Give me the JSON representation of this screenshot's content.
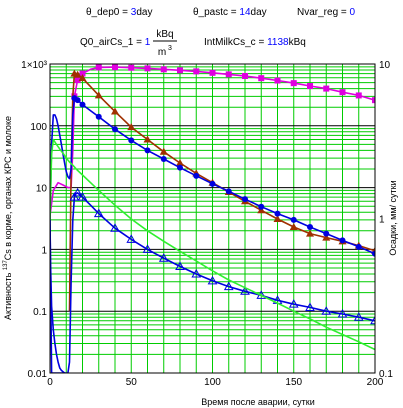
{
  "header": {
    "p1_name": "θ_dep0 = ",
    "p1_value": "3",
    "p1_unit": "day",
    "p2_name": "θ_pastc = ",
    "p2_value": "14",
    "p2_unit": "day",
    "p3_name": "Nvar_reg = ",
    "p3_value": "0",
    "p4_name": "Q0_airCs_1 = ",
    "p4_value": "1",
    "p4_unit_num": "kBq",
    "p4_unit_den": "m",
    "p4_unit_exp": "3",
    "p5_name": "IntMilkCs_c = ",
    "p5_value": "1138",
    "p5_unit": "kBq"
  },
  "chart_data": {
    "type": "line",
    "xlabel": "Время после аварии, сутки",
    "ylabel_left_sup": "137",
    "ylabel_left_main": "Cs в корме, органах КРС и молоке",
    "ylabel_left_pre": "Активность ",
    "ylabel_right": "Осадки, мм/ сутки",
    "xlim": [
      0,
      200
    ],
    "ylim_left": [
      0.01,
      1000
    ],
    "ylim_right": [
      0.1,
      10
    ],
    "log_y": true,
    "grid": true,
    "x_ticks": [
      "0",
      "50",
      "100",
      "150",
      "200"
    ],
    "y_ticks_left": [
      "0.01",
      "0.1",
      "1",
      "10",
      "100",
      "1×10³"
    ],
    "y_ticks_right": [
      "0.1",
      "1",
      "10"
    ],
    "colors": {
      "grid": "#00cc00",
      "magenta": "#e000e0",
      "brown": "#a03000",
      "blue": "#0000e0",
      "green": "#30f030",
      "pink": "#ff60a0"
    },
    "series": [
      {
        "color": "magenta",
        "marker": "square",
        "x": [
          0,
          2,
          5,
          8,
          11,
          13,
          14,
          15,
          17,
          20,
          25,
          30,
          40,
          50,
          60,
          70,
          80,
          90,
          100,
          110,
          120,
          130,
          140,
          150,
          160,
          170,
          180,
          190,
          200
        ],
        "y": [
          3.5,
          9,
          12,
          11,
          10,
          10,
          40,
          300,
          550,
          700,
          820,
          880,
          890,
          870,
          850,
          820,
          790,
          760,
          720,
          680,
          640,
          590,
          540,
          490,
          440,
          400,
          350,
          310,
          260
        ]
      },
      {
        "color": "brown",
        "marker": "triangle",
        "x": [
          12,
          13,
          14,
          15,
          17,
          20,
          25,
          30,
          40,
          50,
          60,
          70,
          80,
          90,
          100,
          110,
          120,
          130,
          140,
          150,
          160,
          170,
          180,
          190,
          200
        ],
        "y": [
          0.1,
          20,
          300,
          700,
          670,
          590,
          430,
          310,
          170,
          95,
          60,
          38,
          25,
          17,
          12,
          8.5,
          6,
          4.3,
          3.1,
          2.3,
          1.8,
          1.55,
          1.35,
          1.15,
          0.95
        ]
      },
      {
        "color": "blue",
        "marker": "dot",
        "x": [
          0,
          1,
          2,
          3,
          4,
          5,
          6,
          7,
          8,
          9,
          10,
          11,
          12,
          13,
          14,
          15,
          17,
          20,
          25,
          30,
          40,
          50,
          60,
          70,
          80,
          90,
          100,
          110,
          120,
          130,
          140,
          150,
          160,
          170,
          180,
          190,
          200
        ],
        "y": [
          3,
          50,
          150,
          150,
          130,
          100,
          70,
          50,
          35,
          25,
          18,
          15,
          14,
          20,
          150,
          280,
          260,
          220,
          175,
          140,
          88,
          58,
          40,
          29,
          21,
          15.5,
          11.5,
          8.7,
          6.5,
          4.9,
          3.8,
          3.0,
          2.3,
          1.8,
          1.4,
          1.1,
          0.85
        ]
      },
      {
        "color": "blue",
        "marker": "triangle-open",
        "x": [
          0,
          1,
          3,
          5,
          7,
          9,
          11,
          12,
          13,
          14,
          15,
          16,
          17,
          20,
          25,
          30,
          40,
          50,
          60,
          70,
          80,
          90,
          100,
          110,
          120,
          130,
          140,
          150,
          160,
          170,
          180,
          190,
          200
        ],
        "y": [
          3,
          0.01,
          0.01,
          0.01,
          0.01,
          0.01,
          0.01,
          0.015,
          0.3,
          3,
          7,
          8,
          8.2,
          7,
          5.2,
          3.8,
          2.2,
          1.45,
          1.0,
          0.72,
          0.53,
          0.4,
          0.31,
          0.25,
          0.21,
          0.18,
          0.15,
          0.13,
          0.115,
          0.1,
          0.09,
          0.08,
          0.07
        ]
      },
      {
        "color": "green",
        "marker": "none",
        "x": [
          0,
          1,
          2,
          4,
          6,
          8,
          10,
          12,
          14,
          17,
          20,
          25,
          30,
          40,
          50,
          60,
          70,
          80,
          90,
          100,
          110,
          120,
          130,
          140,
          150,
          160,
          170,
          180,
          190,
          200
        ],
        "y": [
          3,
          35,
          60,
          50,
          42,
          36,
          30,
          26,
          23,
          19,
          16,
          12,
          9,
          5.2,
          3.1,
          2.0,
          1.35,
          0.93,
          0.65,
          0.45,
          0.32,
          0.24,
          0.18,
          0.135,
          0.1,
          0.075,
          0.055,
          0.042,
          0.032,
          0.024
        ]
      },
      {
        "color": "blue",
        "marker": "none",
        "x": [
          0,
          0.3,
          0.6,
          1,
          2,
          3,
          4,
          5,
          6,
          7,
          8,
          9
        ],
        "y": [
          3,
          0.6,
          0.3,
          0.12,
          0.05,
          0.03,
          0.02,
          0.015,
          0.012,
          0.011,
          0.0105,
          0.01
        ]
      }
    ]
  }
}
